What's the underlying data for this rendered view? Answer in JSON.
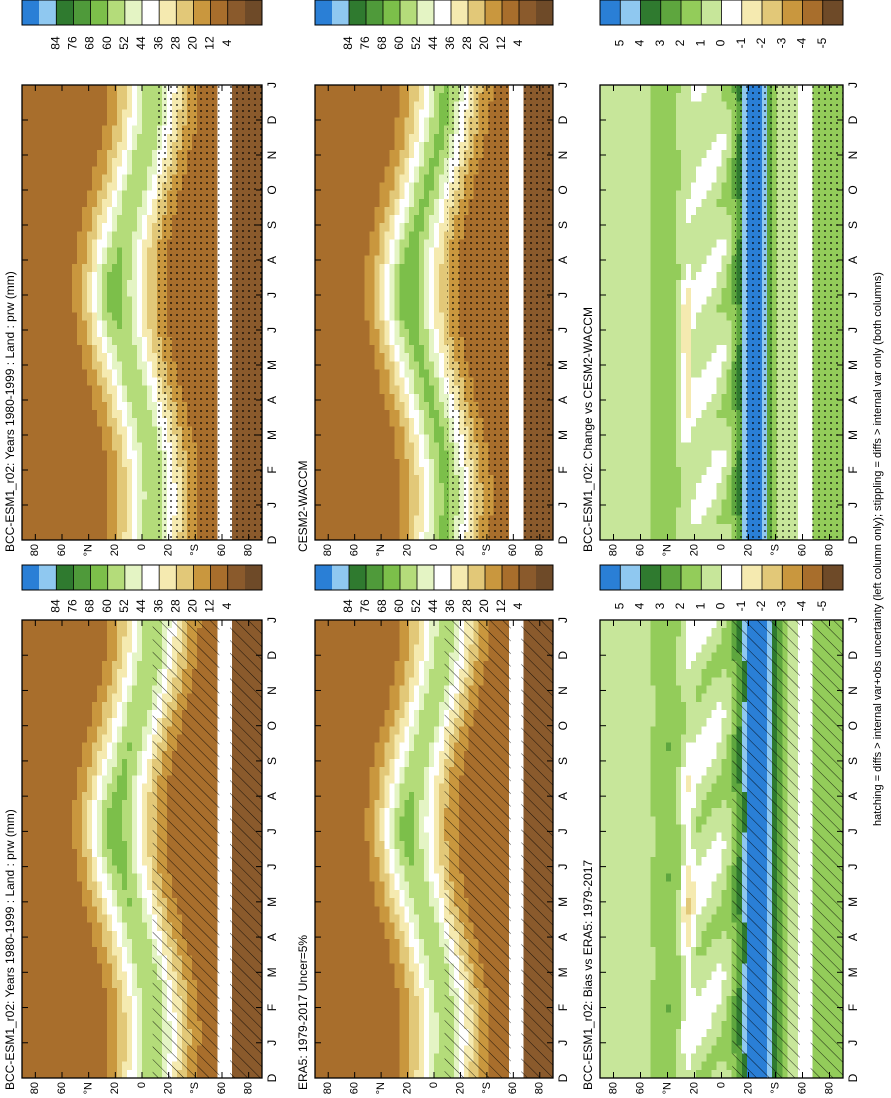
{
  "chart_data": [
    {
      "type": "contour",
      "title": "BCC-ESM1_r02: Years 1980-1999 : Land : prw (mm)",
      "categories": [
        "D",
        "J",
        "F",
        "M",
        "A",
        "M",
        "J",
        "J",
        "A",
        "S",
        "O",
        "N",
        "D",
        "J"
      ],
      "ylim": [
        -90,
        90
      ],
      "yticks": [
        80,
        60,
        {
          "value": 40,
          "label": "°N"
        },
        20,
        0,
        {
          "value": -20,
          "label": "20"
        },
        {
          "value": -40,
          "label": "°S"
        },
        {
          "value": -60,
          "label": "60"
        },
        {
          "value": -80,
          "label": "80"
        }
      ],
      "colorbar": {
        "lim": [
          -12,
          100
        ],
        "ticks": [
          84,
          76,
          68,
          60,
          52,
          44,
          36,
          28,
          20,
          12,
          4
        ],
        "colors": [
          "#2a7fd6",
          "#8fc8f0",
          "#2f7a2f",
          "#4f9a3a",
          "#7cbf4a",
          "#b4dc7a",
          "#e4f4c4",
          "#ffffff",
          "#f5eab0",
          "#e2c878",
          "#c9973e",
          "#a86e2c",
          "#8a5a2c",
          "#6e4a28"
        ]
      }
    },
    {
      "type": "contour",
      "title": "BCC-ESM1_r02: Years 1980-1999 : Land : prw (mm)",
      "categories": [
        "D",
        "J",
        "F",
        "M",
        "A",
        "M",
        "J",
        "J",
        "A",
        "S",
        "O",
        "N",
        "D",
        "J"
      ],
      "ylim": [
        -90,
        90
      ],
      "yticks": [
        80,
        60,
        {
          "value": 40,
          "label": "°N"
        },
        20,
        0,
        {
          "value": -20,
          "label": "20"
        },
        {
          "value": -40,
          "label": "°S"
        },
        {
          "value": -60,
          "label": "60"
        },
        {
          "value": -80,
          "label": "80"
        }
      ],
      "colorbar": {
        "lim": [
          -12,
          100
        ],
        "ticks": [
          84,
          76,
          68,
          60,
          52,
          44,
          36,
          28,
          20,
          12,
          4
        ],
        "colors": [
          "#2a7fd6",
          "#8fc8f0",
          "#2f7a2f",
          "#4f9a3a",
          "#7cbf4a",
          "#b4dc7a",
          "#e4f4c4",
          "#ffffff",
          "#f5eab0",
          "#e2c878",
          "#c9973e",
          "#a86e2c",
          "#8a5a2c",
          "#6e4a28"
        ]
      }
    },
    {
      "type": "contour",
      "title": "ERA5: 1979-2017 Uncer=5%",
      "categories": [
        "D",
        "J",
        "F",
        "M",
        "A",
        "M",
        "J",
        "J",
        "A",
        "S",
        "O",
        "N",
        "D",
        "J"
      ],
      "ylim": [
        -90,
        90
      ],
      "yticks": [
        80,
        60,
        {
          "value": 40,
          "label": "°N"
        },
        20,
        0,
        {
          "value": -20,
          "label": "20"
        },
        {
          "value": -40,
          "label": "°S"
        },
        {
          "value": -60,
          "label": "60"
        },
        {
          "value": -80,
          "label": "80"
        }
      ],
      "colorbar": {
        "lim": [
          -12,
          100
        ],
        "ticks": [
          84,
          76,
          68,
          60,
          52,
          44,
          36,
          28,
          20,
          12,
          4
        ],
        "colors": [
          "#2a7fd6",
          "#8fc8f0",
          "#2f7a2f",
          "#4f9a3a",
          "#7cbf4a",
          "#b4dc7a",
          "#e4f4c4",
          "#ffffff",
          "#f5eab0",
          "#e2c878",
          "#c9973e",
          "#a86e2c",
          "#8a5a2c",
          "#6e4a28"
        ]
      }
    },
    {
      "type": "contour",
      "title": "CESM2-WACCM",
      "categories": [
        "D",
        "J",
        "F",
        "M",
        "A",
        "M",
        "J",
        "J",
        "A",
        "S",
        "O",
        "N",
        "D",
        "J"
      ],
      "ylim": [
        -90,
        90
      ],
      "yticks": [
        80,
        60,
        {
          "value": 40,
          "label": "°N"
        },
        20,
        0,
        {
          "value": -20,
          "label": "20"
        },
        {
          "value": -40,
          "label": "°S"
        },
        {
          "value": -60,
          "label": "60"
        },
        {
          "value": -80,
          "label": "80"
        }
      ],
      "colorbar": {
        "lim": [
          -12,
          100
        ],
        "ticks": [
          84,
          76,
          68,
          60,
          52,
          44,
          36,
          28,
          20,
          12,
          4
        ],
        "colors": [
          "#2a7fd6",
          "#8fc8f0",
          "#2f7a2f",
          "#4f9a3a",
          "#7cbf4a",
          "#b4dc7a",
          "#e4f4c4",
          "#ffffff",
          "#f5eab0",
          "#e2c878",
          "#c9973e",
          "#a86e2c",
          "#8a5a2c",
          "#6e4a28"
        ]
      }
    },
    {
      "type": "contour",
      "title": "BCC-ESM1_r02: Bias vs ERA5: 1979-2017",
      "categories": [
        "D",
        "J",
        "F",
        "M",
        "A",
        "M",
        "J",
        "J",
        "A",
        "S",
        "O",
        "N",
        "D",
        "J"
      ],
      "ylim": [
        -90,
        90
      ],
      "yticks": [
        80,
        60,
        {
          "value": 40,
          "label": "°N"
        },
        20,
        0,
        {
          "value": -20,
          "label": "20"
        },
        {
          "value": -40,
          "label": "°S"
        },
        {
          "value": -60,
          "label": "60"
        },
        {
          "value": -80,
          "label": "80"
        }
      ],
      "colorbar": {
        "lim": [
          -6,
          6
        ],
        "ticks": [
          5,
          4,
          3,
          2,
          1,
          0,
          -1,
          -2,
          -3,
          -4,
          -5
        ],
        "colors": [
          "#2a7fd6",
          "#8fc8f0",
          "#2f7a2f",
          "#5ea63e",
          "#93cc5a",
          "#c7e69a",
          "#ffffff",
          "#f5eab0",
          "#e2c878",
          "#c9973e",
          "#a86e2c",
          "#6e4a28"
        ]
      }
    },
    {
      "type": "contour",
      "title": "BCC-ESM1_r02: Change vs CESM2-WACCM",
      "categories": [
        "D",
        "J",
        "F",
        "M",
        "A",
        "M",
        "J",
        "J",
        "A",
        "S",
        "O",
        "N",
        "D",
        "J"
      ],
      "ylim": [
        -90,
        90
      ],
      "yticks": [
        80,
        60,
        {
          "value": 40,
          "label": "°N"
        },
        20,
        0,
        {
          "value": -20,
          "label": "20"
        },
        {
          "value": -40,
          "label": "°S"
        },
        {
          "value": -60,
          "label": "60"
        },
        {
          "value": -80,
          "label": "80"
        }
      ],
      "colorbar": {
        "lim": [
          -6,
          6
        ],
        "ticks": [
          5,
          4,
          3,
          2,
          1,
          0,
          -1,
          -2,
          -3,
          -4,
          -5
        ],
        "colors": [
          "#2a7fd6",
          "#8fc8f0",
          "#2f7a2f",
          "#5ea63e",
          "#93cc5a",
          "#c7e69a",
          "#ffffff",
          "#f5eab0",
          "#e2c878",
          "#c9973e",
          "#a86e2c",
          "#6e4a28"
        ]
      }
    }
  ],
  "caption": "hatching = diffs > internal var+obs uncertainty (left column only); stippling = diffs > internal var only (both columns)"
}
